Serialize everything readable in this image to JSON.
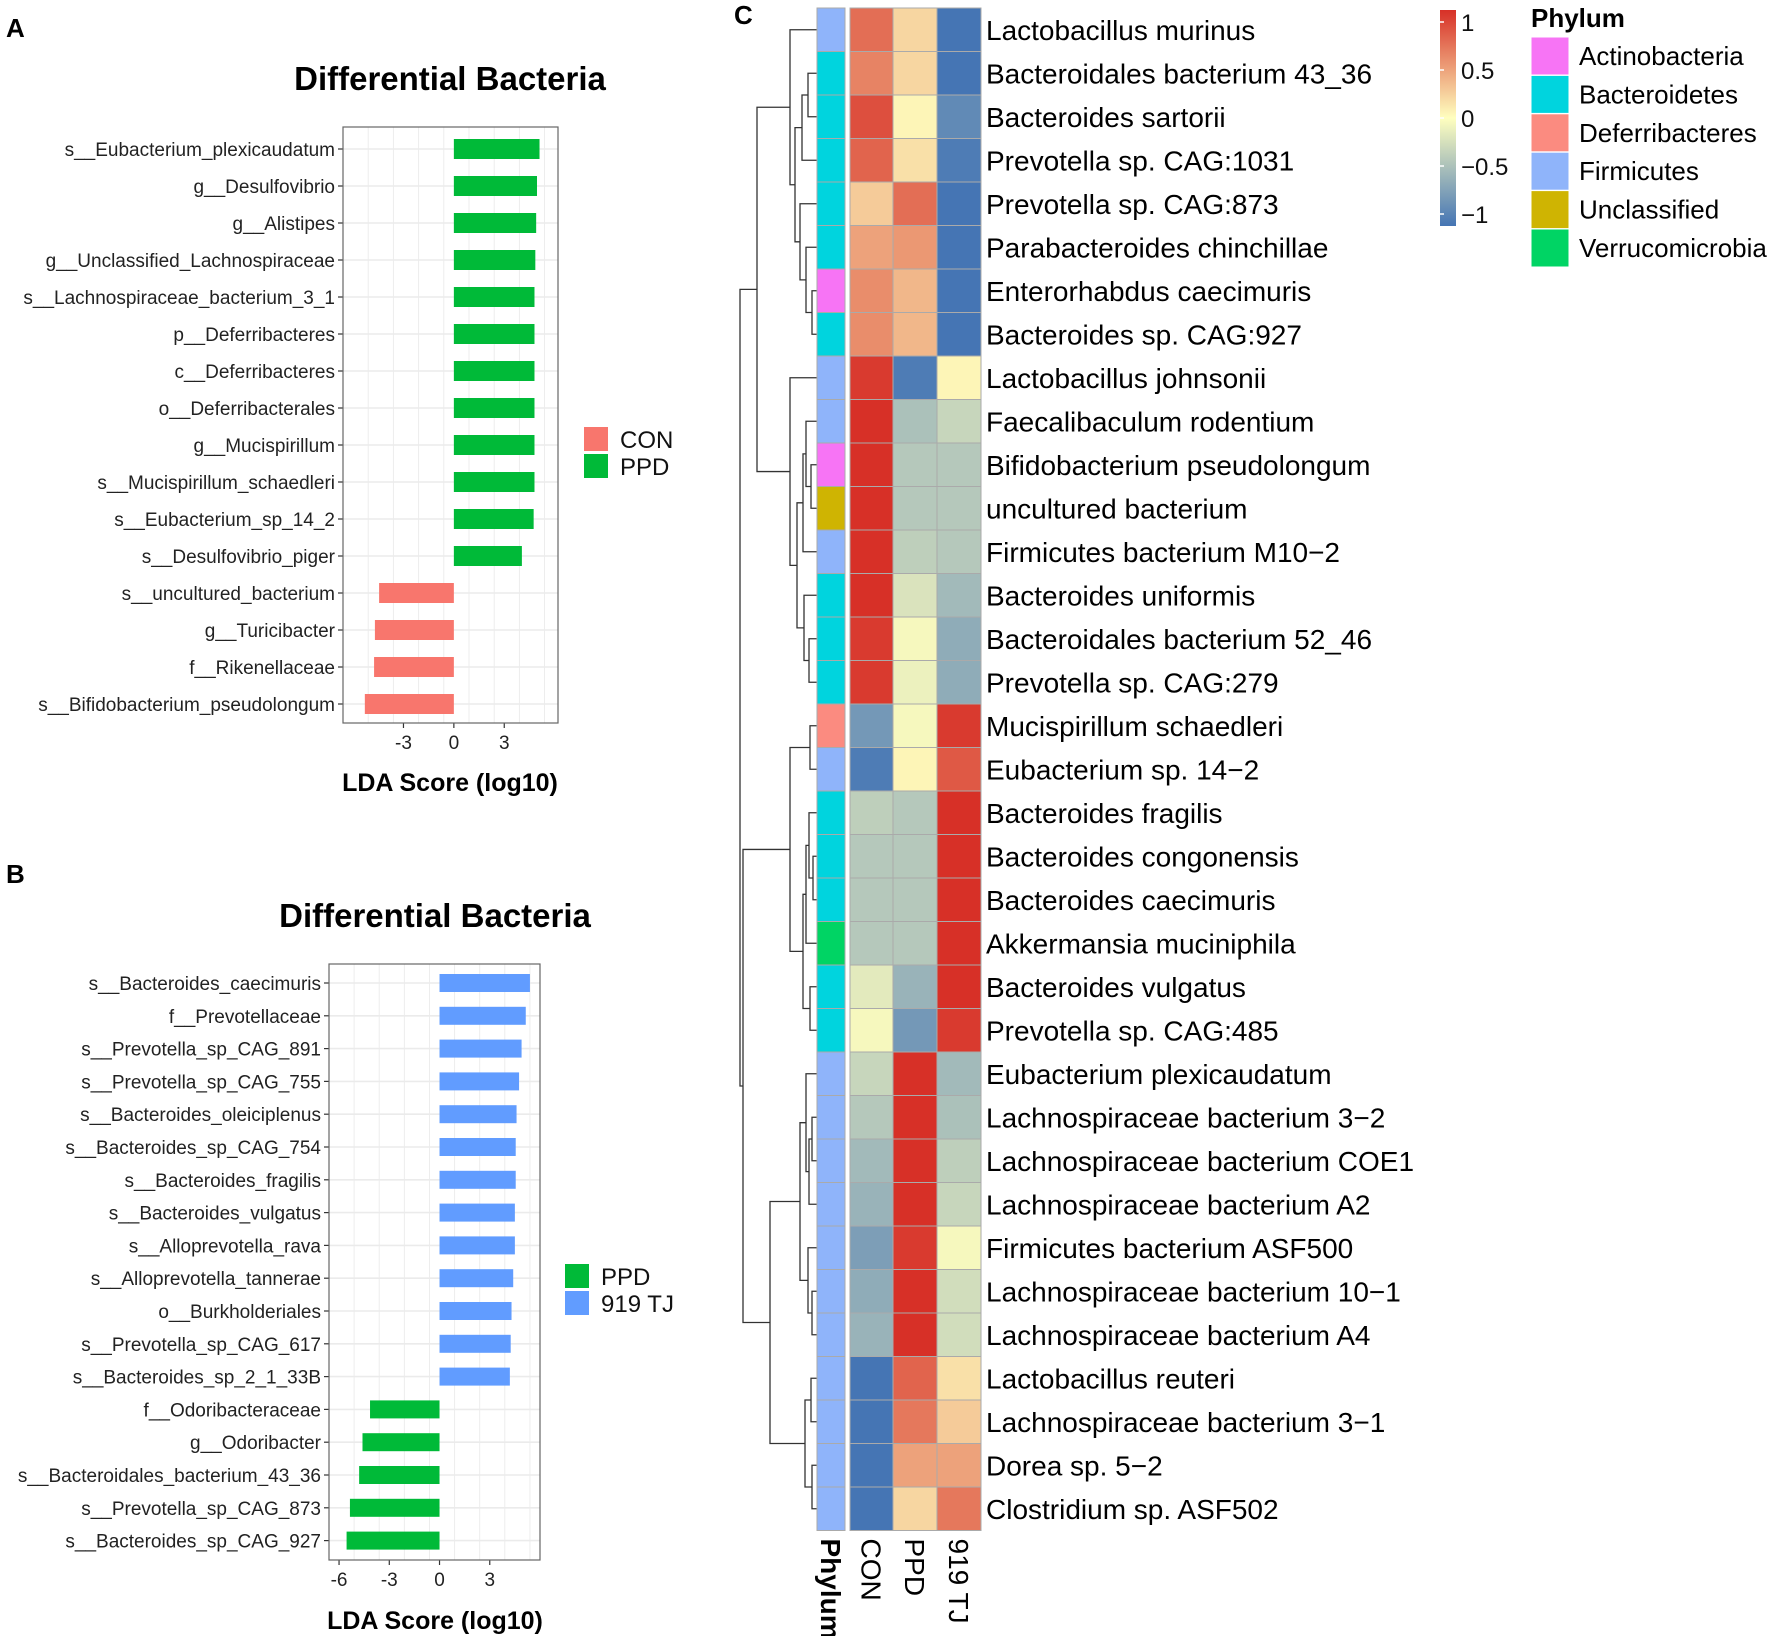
{
  "colors": {
    "con": "#f8766d",
    "ppd": "#00ba38",
    "tj": "#619cff",
    "grid": "#ebebeb",
    "panel_border": "#666666",
    "heat_low": "#4575b4",
    "heat_mid": "#ffffbf",
    "heat_high": "#d73027"
  },
  "panelA": {
    "label": "A",
    "title": "Differential Bacteria",
    "xlabel": "LDA Score (log10)",
    "legend": [
      {
        "name": "CON",
        "color": "#f8766d"
      },
      {
        "name": "PPD",
        "color": "#00ba38"
      }
    ]
  },
  "panelB": {
    "label": "B",
    "title": "Differential Bacteria",
    "xlabel": "LDA Score (log10)",
    "legend": [
      {
        "name": "PPD",
        "color": "#00ba38"
      },
      {
        "name": "919 TJ",
        "color": "#619cff"
      }
    ]
  },
  "panelC": {
    "label": "C",
    "column_labels": [
      "Phylum",
      "CON",
      "PPD",
      "919 TJ"
    ],
    "colorbar_ticks": [
      "1",
      "0.5",
      "0",
      "−0.5",
      "−1"
    ],
    "phylum_legend_title": "Phylum",
    "phylum_legend": [
      {
        "name": "Actinobacteria",
        "color": "#f774f5"
      },
      {
        "name": "Bacteroidetes",
        "color": "#00d4de"
      },
      {
        "name": "Deferribacteres",
        "color": "#fb8b80"
      },
      {
        "name": "Firmicutes",
        "color": "#8fb4fa"
      },
      {
        "name": "Unclassified",
        "color": "#cfb402"
      },
      {
        "name": "Verrucomicrobia",
        "color": "#00d464"
      }
    ]
  },
  "chart_data": [
    {
      "type": "bar",
      "orientation": "horizontal",
      "title": "Differential Bacteria",
      "xlabel": "LDA Score (log10)",
      "xlim": [
        -6,
        6
      ],
      "xticks": [
        -3,
        0,
        3
      ],
      "categories": [
        "s__Eubacterium_plexicaudatum",
        "g__Desulfovibrio",
        "g__Alistipes",
        "g__Unclassified_Lachnospiraceae",
        "s__Lachnospiraceae_bacterium_3_1",
        "p__Deferribacteres",
        "c__Deferribacteres",
        "o__Deferribacterales",
        "g__Mucispirillum",
        "s__Mucispirillum_schaedleri",
        "s__Eubacterium_sp_14_2",
        "s__Desulfovibrio_piger",
        "s__uncultured_bacterium",
        "g__Turicibacter",
        "f__Rikenellaceae",
        "s__Bifidobacterium_pseudolongum"
      ],
      "values": [
        5.1,
        4.95,
        4.9,
        4.85,
        4.8,
        4.8,
        4.8,
        4.8,
        4.8,
        4.8,
        4.75,
        4.05,
        -4.45,
        -4.7,
        -4.75,
        -5.3
      ],
      "groups": [
        "PPD",
        "PPD",
        "PPD",
        "PPD",
        "PPD",
        "PPD",
        "PPD",
        "PPD",
        "PPD",
        "PPD",
        "PPD",
        "PPD",
        "CON",
        "CON",
        "CON",
        "CON"
      ],
      "legend": [
        "CON",
        "PPD"
      ]
    },
    {
      "type": "bar",
      "orientation": "horizontal",
      "title": "Differential Bacteria",
      "xlabel": "LDA Score (log10)",
      "xlim": [
        -6,
        6
      ],
      "xticks": [
        -6,
        -3,
        0,
        3
      ],
      "categories": [
        "s__Bacteroides_caecimuris",
        "f__Prevotellaceae",
        "s__Prevotella_sp_CAG_891",
        "s__Prevotella_sp_CAG_755",
        "s__Bacteroides_oleiciplenus",
        "s__Bacteroides_sp_CAG_754",
        "s__Bacteroides_fragilis",
        "s__Bacteroides_vulgatus",
        "s__Alloprevotella_rava",
        "s__Alloprevotella_tannerae",
        "o__Burkholderiales",
        "s__Prevotella_sp_CAG_617",
        "s__Bacteroides_sp_2_1_33B",
        "f__Odoribacteraceae",
        "g__Odoribacter",
        "s__Bacteroidales_bacterium_43_36",
        "s__Prevotella_sp_CAG_873",
        "s__Bacteroides_sp_CAG_927"
      ],
      "values": [
        5.4,
        5.15,
        4.9,
        4.75,
        4.6,
        4.55,
        4.55,
        4.5,
        4.5,
        4.4,
        4.3,
        4.25,
        4.2,
        -4.15,
        -4.6,
        -4.8,
        -5.35,
        -5.55
      ],
      "groups": [
        "919 TJ",
        "919 TJ",
        "919 TJ",
        "919 TJ",
        "919 TJ",
        "919 TJ",
        "919 TJ",
        "919 TJ",
        "919 TJ",
        "919 TJ",
        "919 TJ",
        "919 TJ",
        "919 TJ",
        "PPD",
        "PPD",
        "PPD",
        "PPD",
        "PPD"
      ],
      "legend": [
        "PPD",
        "919 TJ"
      ]
    },
    {
      "type": "heatmap",
      "columns": [
        "CON",
        "PPD",
        "919 TJ"
      ],
      "annotation_column": "Phylum",
      "value_range": [
        -1,
        1
      ],
      "rows": [
        {
          "name": "Lactobacillus murinus",
          "phylum": "Firmicutes",
          "values": [
            0.7,
            0.2,
            -1.0
          ]
        },
        {
          "name": "Bacteroidales bacterium 43_36",
          "phylum": "Bacteroidetes",
          "values": [
            0.6,
            0.2,
            -1.0
          ]
        },
        {
          "name": "Bacteroides sartorii",
          "phylum": "Bacteroidetes",
          "values": [
            0.85,
            0.05,
            -0.85
          ]
        },
        {
          "name": "Prevotella sp. CAG:1031",
          "phylum": "Bacteroidetes",
          "values": [
            0.75,
            0.15,
            -0.95
          ]
        },
        {
          "name": "Prevotella sp. CAG:873",
          "phylum": "Bacteroidetes",
          "values": [
            0.25,
            0.7,
            -1.0
          ]
        },
        {
          "name": "Parabacteroides chinchillae",
          "phylum": "Bacteroidetes",
          "values": [
            0.45,
            0.5,
            -1.0
          ]
        },
        {
          "name": "Enterorhabdus caecimuris",
          "phylum": "Actinobacteria",
          "values": [
            0.55,
            0.35,
            -1.0
          ]
        },
        {
          "name": "Bacteroides sp. CAG:927",
          "phylum": "Bacteroidetes",
          "values": [
            0.55,
            0.35,
            -1.0
          ]
        },
        {
          "name": "Lactobacillus johnsonii",
          "phylum": "Firmicutes",
          "values": [
            0.95,
            -0.95,
            0.05
          ]
        },
        {
          "name": "Faecalibaculum rodentium",
          "phylum": "Firmicutes",
          "values": [
            1.0,
            -0.45,
            -0.3
          ]
        },
        {
          "name": "Bifidobacterium pseudolongum",
          "phylum": "Actinobacteria",
          "values": [
            1.0,
            -0.4,
            -0.4
          ]
        },
        {
          "name": "uncultured bacterium",
          "phylum": "Unclassified",
          "values": [
            1.0,
            -0.4,
            -0.4
          ]
        },
        {
          "name": "Firmicutes bacterium M10−2",
          "phylum": "Firmicutes",
          "values": [
            1.0,
            -0.35,
            -0.4
          ]
        },
        {
          "name": "Bacteroides uniformis",
          "phylum": "Bacteroidetes",
          "values": [
            1.0,
            -0.2,
            -0.5
          ]
        },
        {
          "name": "Bacteroidales bacterium 52_46",
          "phylum": "Bacteroidetes",
          "values": [
            0.95,
            -0.05,
            -0.6
          ]
        },
        {
          "name": "Prevotella sp. CAG:279",
          "phylum": "Bacteroidetes",
          "values": [
            0.95,
            -0.1,
            -0.6
          ]
        },
        {
          "name": "Mucispirillum schaedleri",
          "phylum": "Deferribacteres",
          "values": [
            -0.75,
            -0.05,
            0.95
          ]
        },
        {
          "name": "Eubacterium sp. 14−2",
          "phylum": "Firmicutes",
          "values": [
            -0.95,
            0.05,
            0.8
          ]
        },
        {
          "name": "Bacteroides fragilis",
          "phylum": "Bacteroidetes",
          "values": [
            -0.35,
            -0.4,
            1.0
          ]
        },
        {
          "name": "Bacteroides congonensis",
          "phylum": "Bacteroidetes",
          "values": [
            -0.4,
            -0.4,
            1.0
          ]
        },
        {
          "name": "Bacteroides caecimuris",
          "phylum": "Bacteroidetes",
          "values": [
            -0.4,
            -0.4,
            1.0
          ]
        },
        {
          "name": "Akkermansia muciniphila",
          "phylum": "Verrucomicrobia",
          "values": [
            -0.4,
            -0.4,
            1.0
          ]
        },
        {
          "name": "Bacteroides vulgatus",
          "phylum": "Bacteroidetes",
          "values": [
            -0.15,
            -0.55,
            1.0
          ]
        },
        {
          "name": "Prevotella sp. CAG:485",
          "phylum": "Bacteroidetes",
          "values": [
            -0.05,
            -0.75,
            0.95
          ]
        },
        {
          "name": "Eubacterium plexicaudatum",
          "phylum": "Firmicutes",
          "values": [
            -0.3,
            1.0,
            -0.5
          ]
        },
        {
          "name": "Lachnospiraceae bacterium 3−2",
          "phylum": "Firmicutes",
          "values": [
            -0.4,
            1.0,
            -0.45
          ]
        },
        {
          "name": "Lachnospiraceae bacterium COE1",
          "phylum": "Firmicutes",
          "values": [
            -0.5,
            1.0,
            -0.35
          ]
        },
        {
          "name": "Lachnospiraceae bacterium A2",
          "phylum": "Firmicutes",
          "values": [
            -0.55,
            1.0,
            -0.3
          ]
        },
        {
          "name": "Firmicutes bacterium ASF500",
          "phylum": "Firmicutes",
          "values": [
            -0.7,
            0.95,
            -0.05
          ]
        },
        {
          "name": "Lachnospiraceae bacterium 10−1",
          "phylum": "Firmicutes",
          "values": [
            -0.6,
            1.0,
            -0.25
          ]
        },
        {
          "name": "Lachnospiraceae bacterium A4",
          "phylum": "Firmicutes",
          "values": [
            -0.55,
            1.0,
            -0.25
          ]
        },
        {
          "name": "Lactobacillus reuteri",
          "phylum": "Firmicutes",
          "values": [
            -1.0,
            0.75,
            0.15
          ]
        },
        {
          "name": "Lachnospiraceae bacterium 3−1",
          "phylum": "Firmicutes",
          "values": [
            -1.0,
            0.65,
            0.25
          ]
        },
        {
          "name": "Dorea sp. 5−2",
          "phylum": "Firmicutes",
          "values": [
            -1.0,
            0.45,
            0.45
          ]
        },
        {
          "name": "Clostridium sp. ASF502",
          "phylum": "Firmicutes",
          "values": [
            -1.0,
            0.2,
            0.65
          ]
        }
      ]
    }
  ]
}
